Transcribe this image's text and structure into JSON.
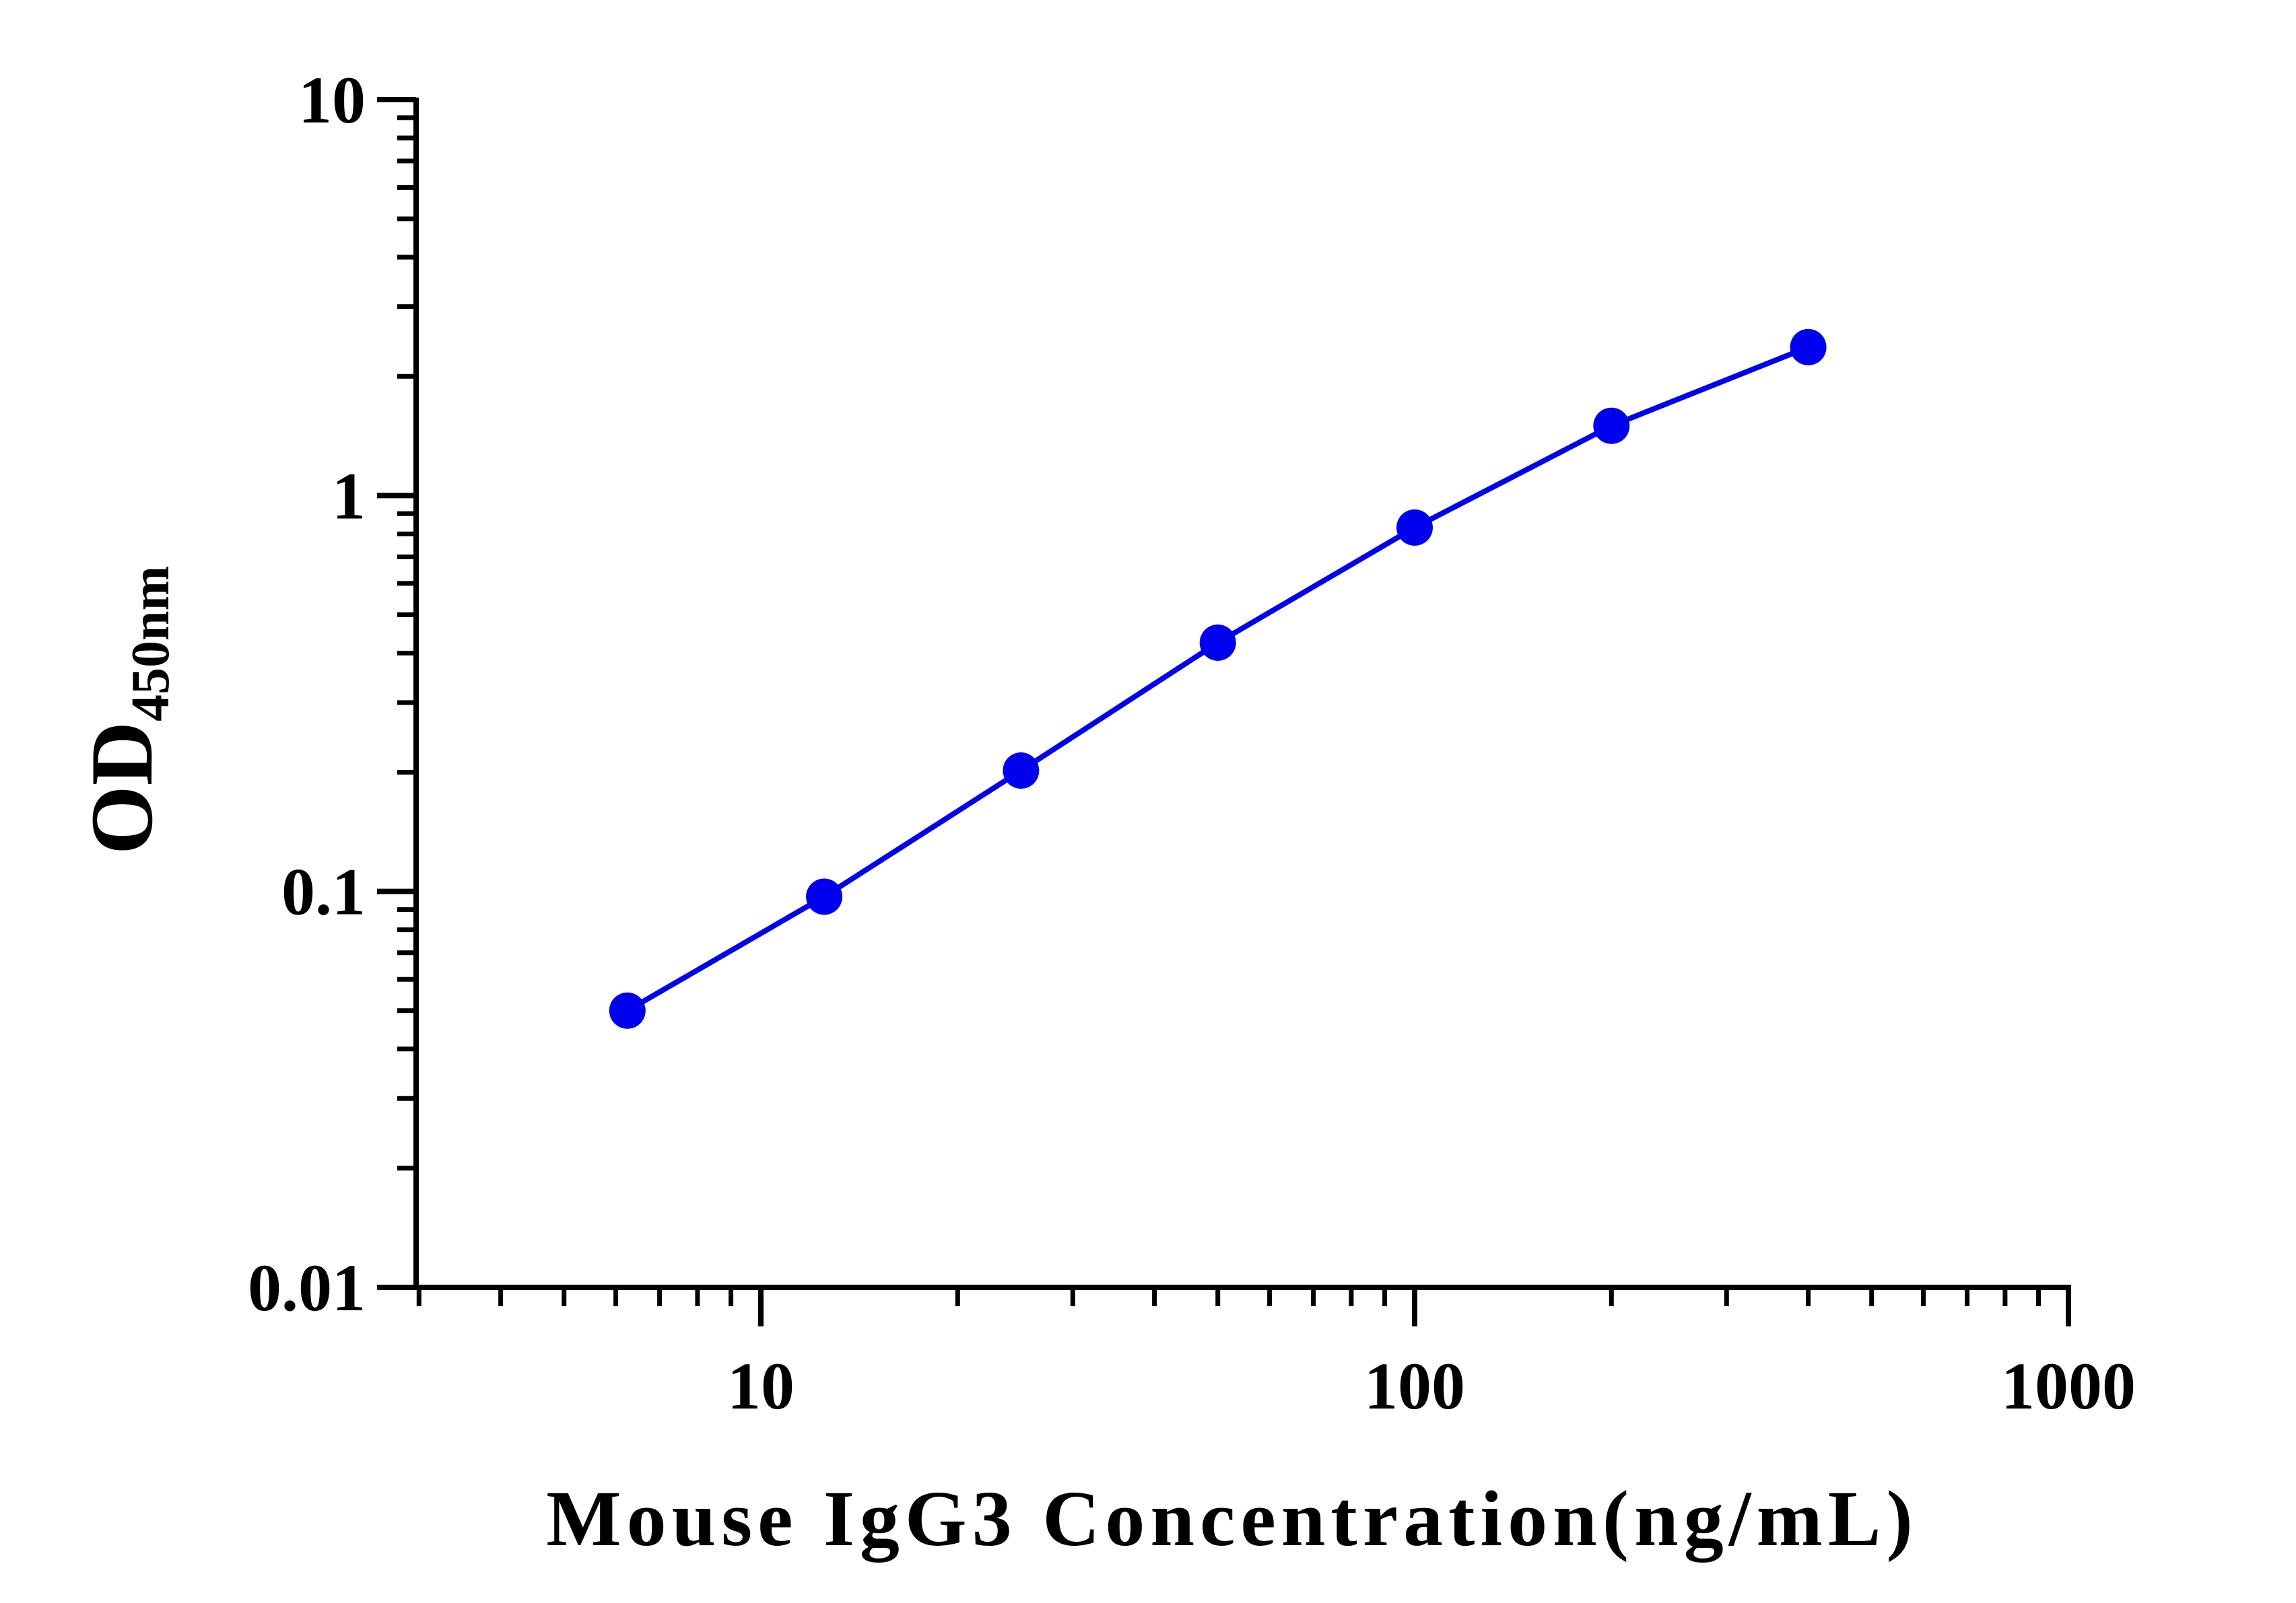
{
  "chart_data": {
    "type": "line",
    "title": "",
    "xlabel": "Mouse IgG3 Concentration(ng/mL)",
    "ylabel": "OD",
    "ylabel_subscript": "450nm",
    "x_scale": "log",
    "y_scale": "log",
    "xlim": [
      3,
      1000
    ],
    "ylim": [
      0.01,
      10
    ],
    "x_ticks": [
      {
        "value": 10,
        "label": "10"
      },
      {
        "value": 100,
        "label": "100"
      },
      {
        "value": 1000,
        "label": "1000"
      }
    ],
    "y_ticks": [
      {
        "value": 0.01,
        "label": "0.01"
      },
      {
        "value": 0.1,
        "label": "0.1"
      },
      {
        "value": 1,
        "label": "1"
      },
      {
        "value": 10,
        "label": "10"
      }
    ],
    "grid": false,
    "legend": "none",
    "series": [
      {
        "color": "#0000ee",
        "x": [
          6.25,
          12.5,
          25,
          50,
          100,
          200,
          400
        ],
        "y": [
          0.05,
          0.097,
          0.202,
          0.425,
          0.83,
          1.5,
          2.37
        ]
      }
    ]
  }
}
